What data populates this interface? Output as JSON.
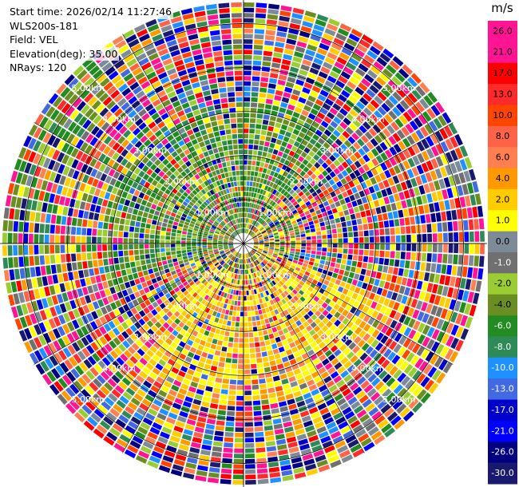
{
  "info": {
    "start_time": "Start time: 2026/02/14 11:27:46",
    "instrument": "WLS200s-181",
    "field": "Field: VEL",
    "elevation": "Elevation(deg): 35.00",
    "nrays": "NRays: 120"
  },
  "chart_data": {
    "type": "heatmap",
    "projection": "polar-ppi",
    "field": "VEL",
    "n_rays": 120,
    "range_rings_km": [
      1.0,
      2.0,
      3.0,
      4.0,
      5.0
    ],
    "ring_labels": [
      "1.00km",
      "2.00km",
      "3.00km",
      "4.00km",
      "5.00km"
    ],
    "max_range_km": 5.5,
    "colorbar": {
      "unit": "m/s",
      "tick_labels": [
        "26.0",
        "21.0",
        "17.0",
        "13.0",
        "10.0",
        "8.0",
        "6.0",
        "4.0",
        "2.0",
        "1.0",
        "0.0",
        "-1.0",
        "-2.0",
        "-4.0",
        "-6.0",
        "-8.0",
        "-10.0",
        "-13.0",
        "-17.0",
        "-21.0",
        "-26.0",
        "-30.0"
      ],
      "colors": [
        "#ff1493",
        "#ff1493",
        "#ff0000",
        "#ff2a2a",
        "#ff4500",
        "#ff6347",
        "#ff7f50",
        "#ff9900",
        "#ffcc00",
        "#ffff00",
        "#7d8a98",
        "#707070",
        "#9acd32",
        "#6b8e23",
        "#228b22",
        "#2e8b57",
        "#1e90ff",
        "#4169e1",
        "#0000cd",
        "#0000ff",
        "#000080",
        "#191970"
      ]
    }
  }
}
